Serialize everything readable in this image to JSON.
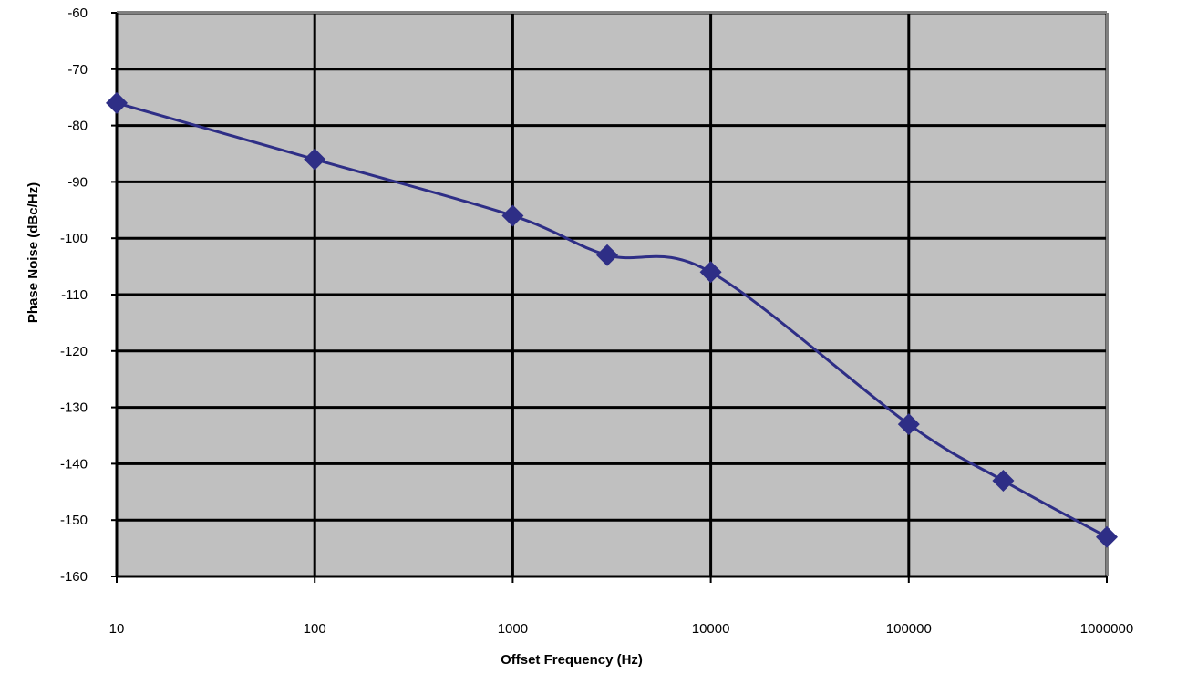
{
  "chart_data": {
    "type": "line",
    "title": "",
    "xlabel": "Offset Frequency (Hz)",
    "ylabel": "Phase Noise (dBc/Hz)",
    "x_scale": "log",
    "xlim": [
      10,
      1000000
    ],
    "ylim": [
      -160,
      -60
    ],
    "x_ticks": [
      {
        "value": 10,
        "label": "10"
      },
      {
        "value": 100,
        "label": "100"
      },
      {
        "value": 1000,
        "label": "1000"
      },
      {
        "value": 10000,
        "label": "10000"
      },
      {
        "value": 100000,
        "label": "100000"
      },
      {
        "value": 1000000,
        "label": "1000000"
      }
    ],
    "y_ticks": [
      {
        "value": -60,
        "label": "-60"
      },
      {
        "value": -70,
        "label": "-70"
      },
      {
        "value": -80,
        "label": "-80"
      },
      {
        "value": -90,
        "label": "-90"
      },
      {
        "value": -100,
        "label": "-100"
      },
      {
        "value": -110,
        "label": "-110"
      },
      {
        "value": -120,
        "label": "-120"
      },
      {
        "value": -130,
        "label": "-130"
      },
      {
        "value": -140,
        "label": "-140"
      },
      {
        "value": -150,
        "label": "-150"
      },
      {
        "value": -160,
        "label": "-160"
      }
    ],
    "grid": true,
    "legend": "none",
    "smoothed_line": true,
    "marker": "diamond",
    "colors": {
      "plot_background": "#c0c0c0",
      "series": "#2e2e86",
      "grid": "#000000",
      "frame": "#808080"
    },
    "series": [
      {
        "x": [
          10,
          100,
          1000,
          3000,
          10000,
          100000,
          300000,
          1000000
        ],
        "y": [
          -76,
          -86,
          -96,
          -103,
          -106,
          -133,
          -143,
          -153
        ]
      }
    ]
  }
}
